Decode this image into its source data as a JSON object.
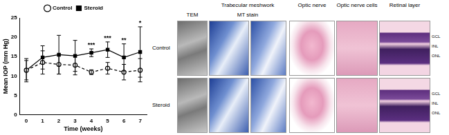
{
  "chart_data": {
    "type": "line",
    "x_label": "Time (weeks)",
    "y_label": "Mean IOP (mm Hg)",
    "x": [
      0,
      1,
      2,
      3,
      4,
      5,
      6,
      7
    ],
    "xlim": [
      -0.4,
      7.4
    ],
    "xticks": [
      0,
      1,
      2,
      3,
      4,
      5,
      6,
      7
    ],
    "ylim": [
      0,
      25
    ],
    "yticks": [
      0,
      5,
      10,
      15,
      20,
      25
    ],
    "grid": false,
    "legend": "top",
    "series": [
      {
        "name": "Control",
        "color": "#000000",
        "marker": "circle-open",
        "line_style": "dashed",
        "values": [
          11.5,
          13.5,
          13.0,
          12.8,
          11.0,
          12.0,
          11.0,
          11.5
        ],
        "error": [
          3.0,
          3.0,
          2.5,
          2.5,
          0.6,
          1.5,
          2.0,
          3.0
        ]
      },
      {
        "name": "Steroid",
        "color": "#000000",
        "marker": "square",
        "line_style": "solid",
        "values": [
          11.5,
          14.8,
          15.5,
          15.2,
          16.0,
          16.8,
          14.8,
          16.2
        ],
        "error": [
          2.5,
          3.0,
          5.0,
          4.0,
          1.0,
          2.0,
          3.5,
          6.5
        ]
      }
    ],
    "annotations": [
      {
        "x": 4,
        "text": "***"
      },
      {
        "x": 5,
        "text": "***"
      },
      {
        "x": 6,
        "text": "**"
      },
      {
        "x": 7,
        "text": "*"
      }
    ]
  },
  "figure_panels": {
    "group_header": "Trabecular meshwork",
    "sub_columns": [
      "TEM",
      "MT stain"
    ],
    "columns": [
      "Optic nerve",
      "Optic nerve cells",
      "Retinal layer"
    ],
    "rows": [
      "Control",
      "Steroid"
    ],
    "layer_labels": [
      "GCL",
      "INL",
      "ONL"
    ]
  }
}
